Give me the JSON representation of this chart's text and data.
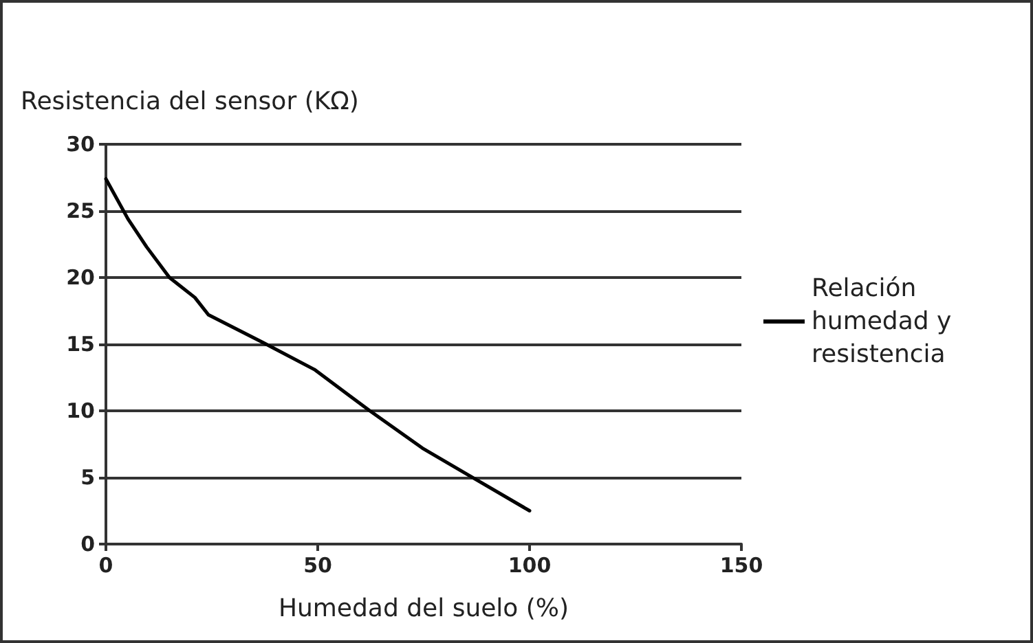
{
  "chart_data": {
    "type": "line",
    "xlabel": "Humedad del suelo (%)",
    "ylabel": "Resistencia del sensor (KΩ)",
    "series": [
      {
        "name": "Relación humedad y resistencia",
        "color": "#000000",
        "x": [
          0,
          5.2,
          9.6,
          15,
          21,
          24.2,
          37.2,
          49.2,
          62.3,
          74.7,
          86,
          100
        ],
        "values": [
          27.4,
          24.4,
          22.3,
          20,
          18.5,
          17.2,
          15.1,
          13.1,
          10,
          7.2,
          5.1,
          2.5
        ]
      }
    ],
    "xlim": [
      0,
      150
    ],
    "xticks": [
      0,
      50,
      100,
      150
    ],
    "ylim": [
      0,
      30
    ],
    "yticks": [
      0,
      5,
      10,
      15,
      20,
      25,
      30
    ],
    "grid": "y",
    "legend": "right",
    "marker": "none",
    "line_style": "solid"
  }
}
